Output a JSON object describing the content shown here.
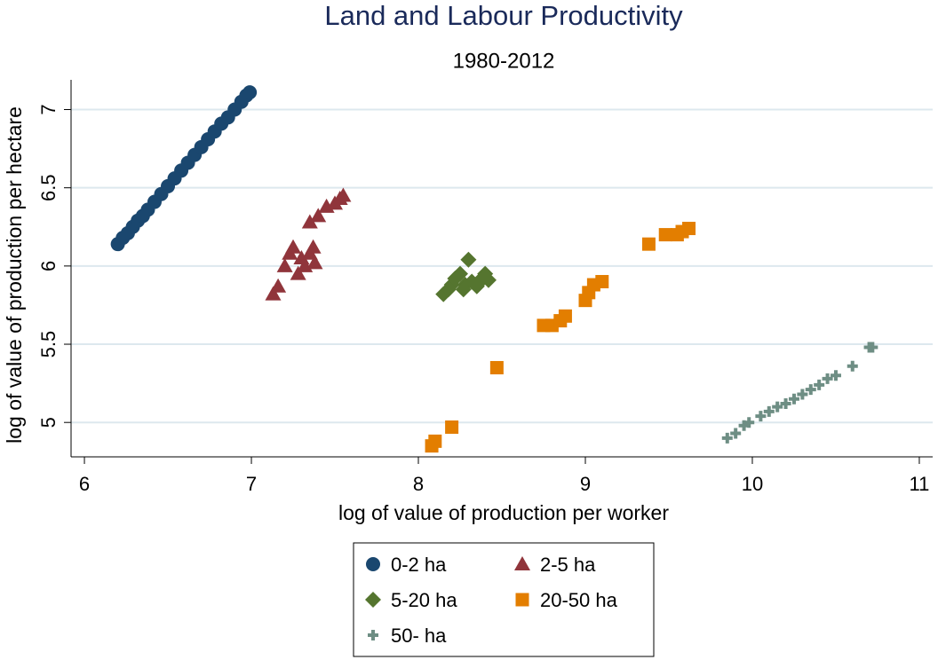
{
  "chart_data": {
    "type": "scatter",
    "title": "Land and Labour Productivity",
    "subtitle": "1980-2012",
    "x_label": "log of value of production per worker",
    "y_label": "log of value of production per hectare",
    "xlim": [
      5.92,
      11.08
    ],
    "xticks": [
      6,
      7,
      8,
      9,
      10,
      11
    ],
    "ylim": [
      4.78,
      7.19
    ],
    "yticks": [
      5,
      5.5,
      6,
      6.5,
      7
    ],
    "grid": true,
    "legend": "bottom",
    "series": [
      {
        "name": "0-2 ha",
        "color": "#1a476f",
        "marker": "circle",
        "x": [
          6.2,
          6.23,
          6.26,
          6.29,
          6.32,
          6.35,
          6.38,
          6.42,
          6.46,
          6.5,
          6.54,
          6.58,
          6.62,
          6.66,
          6.7,
          6.74,
          6.78,
          6.82,
          6.86,
          6.9,
          6.94,
          6.97,
          6.99
        ],
        "values": [
          6.14,
          6.18,
          6.21,
          6.25,
          6.29,
          6.32,
          6.36,
          6.41,
          6.46,
          6.51,
          6.56,
          6.61,
          6.66,
          6.71,
          6.76,
          6.81,
          6.86,
          6.91,
          6.95,
          7.0,
          7.05,
          7.09,
          7.11
        ]
      },
      {
        "name": "2-5 ha",
        "color": "#90353b",
        "marker": "triangle",
        "x": [
          7.13,
          7.16,
          7.2,
          7.23,
          7.25,
          7.28,
          7.3,
          7.32,
          7.35,
          7.37,
          7.38,
          7.35,
          7.4,
          7.45,
          7.5,
          7.53,
          7.55
        ],
        "values": [
          5.82,
          5.87,
          6.0,
          6.08,
          6.12,
          5.95,
          6.05,
          6.0,
          6.08,
          6.12,
          6.02,
          6.28,
          6.32,
          6.38,
          6.4,
          6.43,
          6.45
        ]
      },
      {
        "name": "5-20 ha",
        "color": "#55752f",
        "marker": "diamond",
        "x": [
          8.15,
          8.18,
          8.2,
          8.22,
          8.25,
          8.28,
          8.3,
          8.32,
          8.35,
          8.38,
          8.4,
          8.42,
          8.27,
          8.36
        ],
        "values": [
          5.82,
          5.85,
          5.88,
          5.92,
          5.95,
          5.88,
          6.04,
          5.9,
          5.87,
          5.92,
          5.95,
          5.91,
          5.85,
          5.89
        ]
      },
      {
        "name": "20-50 ha",
        "color": "#e37e00",
        "marker": "square",
        "x": [
          8.08,
          8.1,
          8.2,
          8.47,
          8.75,
          8.8,
          8.85,
          8.88,
          9.0,
          9.02,
          9.05,
          9.1,
          9.38,
          9.48,
          9.55,
          9.58,
          9.62
        ],
        "values": [
          4.85,
          4.88,
          4.97,
          5.35,
          5.62,
          5.62,
          5.65,
          5.68,
          5.78,
          5.83,
          5.88,
          5.9,
          6.14,
          6.2,
          6.2,
          6.22,
          6.24
        ]
      },
      {
        "name": "50- ha",
        "color": "#6e8e84",
        "marker": "plus",
        "x": [
          9.85,
          9.9,
          9.95,
          9.98,
          10.05,
          10.1,
          10.15,
          10.2,
          10.25,
          10.3,
          10.35,
          10.4,
          10.45,
          10.5,
          10.6,
          10.7,
          10.72
        ],
        "values": [
          4.9,
          4.93,
          4.98,
          5.0,
          5.04,
          5.07,
          5.1,
          5.12,
          5.15,
          5.18,
          5.21,
          5.24,
          5.28,
          5.3,
          5.36,
          5.48,
          5.48
        ]
      }
    ]
  }
}
